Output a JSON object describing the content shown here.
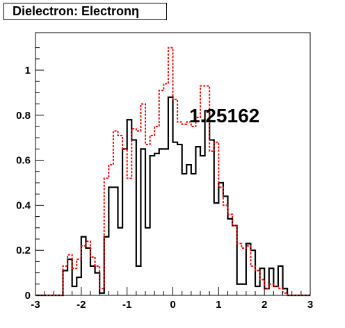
{
  "chart_data": {
    "type": "line",
    "title": "Dielectron: Electronη",
    "annotation": "1.25162",
    "xlim": [
      -3,
      3
    ],
    "ylim": [
      0,
      1.15
    ],
    "x_ticks": [
      "-3",
      "-2",
      "-1",
      "0",
      "1",
      "2",
      "3"
    ],
    "y_ticks": [
      "0",
      "0.2",
      "0.4",
      "0.6",
      "0.8",
      "1"
    ],
    "bin_edges": [
      -3.0,
      -2.9,
      -2.8,
      -2.7,
      -2.6,
      -2.5,
      -2.4,
      -2.3,
      -2.2,
      -2.1,
      -2.0,
      -1.9,
      -1.8,
      -1.7,
      -1.6,
      -1.5,
      -1.4,
      -1.3,
      -1.2,
      -1.1,
      -1.0,
      -0.9,
      -0.8,
      -0.7,
      -0.6,
      -0.5,
      -0.4,
      -0.3,
      -0.2,
      -0.1,
      0.0,
      0.1,
      0.2,
      0.3,
      0.4,
      0.5,
      0.6,
      0.7,
      0.8,
      0.9,
      1.0,
      1.1,
      1.2,
      1.3,
      1.4,
      1.5,
      1.6,
      1.7,
      1.8,
      1.9,
      2.0,
      2.1,
      2.2,
      2.3,
      2.4,
      2.5,
      2.6,
      2.7,
      2.8,
      2.9,
      3.0
    ],
    "series": [
      {
        "style": "solid",
        "color": "#000000",
        "values": [
          0,
          0,
          0,
          0,
          0,
          0,
          0.11,
          0.16,
          0.04,
          0.08,
          0.26,
          0.21,
          0.13,
          0.1,
          0.01,
          0.26,
          0.48,
          0.48,
          0.3,
          0.65,
          0.78,
          0.69,
          0.13,
          0.65,
          0.3,
          0.62,
          0.63,
          0.65,
          0.65,
          0.88,
          0.68,
          0.67,
          0.54,
          0.58,
          0.54,
          0.66,
          0.62,
          0.82,
          0.69,
          0.41,
          0.5,
          0.44,
          0.34,
          0.31,
          0.05,
          0.05,
          0.23,
          0.2,
          0.04,
          0.12,
          0.03,
          0.12,
          0.04,
          0.13,
          0.03,
          0,
          0,
          0,
          0,
          0
        ]
      },
      {
        "style": "dashed",
        "color": "#ff0000",
        "values": [
          0,
          0,
          0,
          0,
          0,
          0,
          0.13,
          0.18,
          0.12,
          0.16,
          0.22,
          0.24,
          0.17,
          0.13,
          0.03,
          0.52,
          0.58,
          0.73,
          0.71,
          0.65,
          0.52,
          0.74,
          0.73,
          0.85,
          0.67,
          0.71,
          0.75,
          0.91,
          0.94,
          1.1,
          0.87,
          0.77,
          0.76,
          0.77,
          0.75,
          0.79,
          0.93,
          0.93,
          0.64,
          0.68,
          0.48,
          0.4,
          0.36,
          0.31,
          0.23,
          0.21,
          0.22,
          0.13,
          0.11,
          0.07,
          0.03,
          0.05,
          0.04,
          0.03,
          0.01,
          0,
          0,
          0,
          0,
          0
        ]
      }
    ],
    "grid": false,
    "legend": "none"
  }
}
